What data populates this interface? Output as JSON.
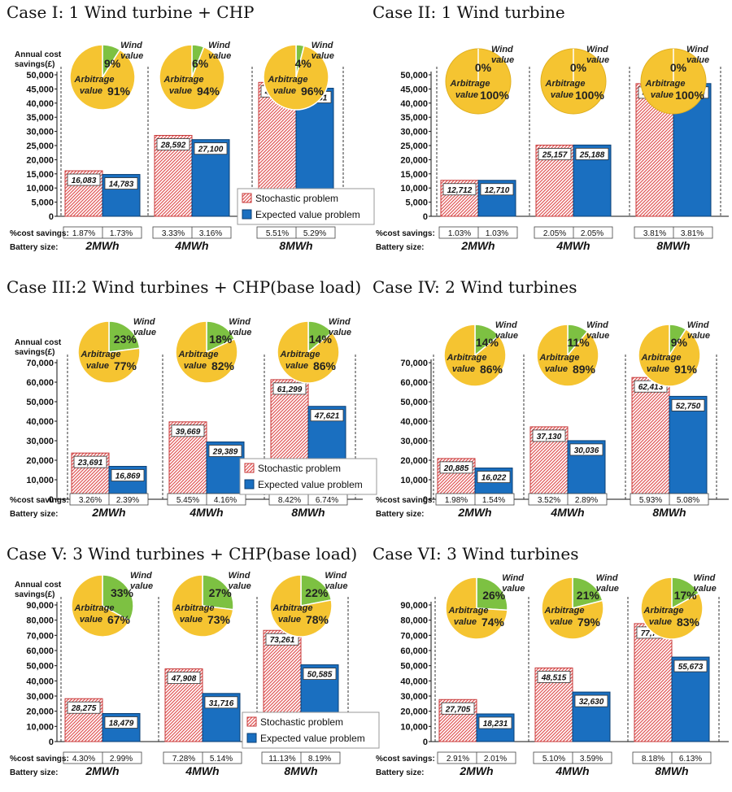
{
  "legend": {
    "stochastic": "Stochastic problem",
    "expected": "Expected value problem"
  },
  "labels": {
    "annual_cost": [
      "Annual cost",
      "savings(£)"
    ],
    "cost_savings": "%cost savings:",
    "battery_size": "Battery size:",
    "arbitrage": "Arbitrage",
    "value": "value",
    "wind": "Wind"
  },
  "colors": {
    "stochastic": "#e05555",
    "expected": "#1a6fc0",
    "pie_arbitrage": "#f5c431",
    "pie_wind": "#7dc142"
  },
  "chart_data": [
    {
      "type": "bar",
      "title": "Case I: 1 Wind turbine + CHP",
      "ylabel": "Annual cost savings(£)",
      "ylim": [
        0,
        50000
      ],
      "yticks": [
        "0",
        "5,000",
        "10,000",
        "15,000",
        "20,000",
        "25,000",
        "30,000",
        "35,000",
        "40,000",
        "45,000",
        "50,000"
      ],
      "categories": [
        "2MWh",
        "4MWh",
        "8MWh"
      ],
      "series": [
        {
          "name": "Stochastic problem",
          "values": [
            16083,
            28592,
            47322
          ],
          "labels": [
            "16,083",
            "28,592",
            "47,322"
          ]
        },
        {
          "name": "Expected value problem",
          "values": [
            14783,
            27100,
            45261
          ],
          "labels": [
            "14,783",
            "27,100",
            "45,261"
          ]
        }
      ],
      "cost_savings_pct": [
        [
          "1.87%",
          "1.73%"
        ],
        [
          "3.33%",
          "3.16%"
        ],
        [
          "5.51%",
          "5.29%"
        ]
      ],
      "pies": [
        {
          "arbitrage": "91%",
          "wind": "9%"
        },
        {
          "arbitrage": "94%",
          "wind": "6%"
        },
        {
          "arbitrage": "96%",
          "wind": "4%"
        }
      ],
      "legend": "inside-right"
    },
    {
      "type": "bar",
      "title": "Case II: 1 Wind turbine",
      "ylim": [
        0,
        50000
      ],
      "yticks": [
        "0",
        "5,000",
        "10,000",
        "15,000",
        "20,000",
        "25,000",
        "30,000",
        "35,000",
        "40,000",
        "45,000",
        "50,000"
      ],
      "categories": [
        "2MWh",
        "4MWh",
        "8MWh"
      ],
      "series": [
        {
          "name": "Stochastic problem",
          "values": [
            12712,
            25157,
            46878
          ],
          "labels": [
            "12,712",
            "25,157",
            "46,878"
          ]
        },
        {
          "name": "Expected value problem",
          "values": [
            12710,
            25188,
            46909
          ],
          "labels": [
            "12,710",
            "25,188",
            "46,909"
          ]
        }
      ],
      "cost_savings_pct": [
        [
          "1.03%",
          "1.03%"
        ],
        [
          "2.05%",
          "2.05%"
        ],
        [
          "3.81%",
          "3.81%"
        ]
      ],
      "pies": [
        {
          "arbitrage": "100%",
          "wind": "0%"
        },
        {
          "arbitrage": "100%",
          "wind": "0%"
        },
        {
          "arbitrage": "100%",
          "wind": "0%"
        }
      ]
    },
    {
      "type": "bar",
      "title": "Case III:2 Wind turbines + CHP(base load)",
      "ylabel": "Annual cost savings(£)",
      "ylim": [
        0,
        70000
      ],
      "yticks": [
        "0",
        "10,000",
        "20,000",
        "30,000",
        "40,000",
        "50,000",
        "60,000",
        "70,000"
      ],
      "categories": [
        "2MWh",
        "4MWh",
        "8MWh"
      ],
      "series": [
        {
          "name": "Stochastic problem",
          "values": [
            23691,
            39669,
            61299
          ],
          "labels": [
            "23,691",
            "39,669",
            "61,299"
          ]
        },
        {
          "name": "Expected value problem",
          "values": [
            16869,
            29389,
            47621
          ],
          "labels": [
            "16,869",
            "29,389",
            "47,621"
          ]
        }
      ],
      "cost_savings_pct": [
        [
          "3.26%",
          "2.39%"
        ],
        [
          "5.45%",
          "4.16%"
        ],
        [
          "8.42%",
          "6.74%"
        ]
      ],
      "pies": [
        {
          "arbitrage": "77%",
          "wind": "23%"
        },
        {
          "arbitrage": "82%",
          "wind": "18%"
        },
        {
          "arbitrage": "86%",
          "wind": "14%"
        }
      ],
      "legend": "inside-right"
    },
    {
      "type": "bar",
      "title": "Case IV: 2 Wind turbines",
      "ylim": [
        0,
        70000
      ],
      "yticks": [
        "0",
        "10,000",
        "20,000",
        "30,000",
        "40,000",
        "50,000",
        "60,000",
        "70,000"
      ],
      "categories": [
        "2MWh",
        "4MWh",
        "8MWh"
      ],
      "series": [
        {
          "name": "Stochastic problem",
          "values": [
            20885,
            37130,
            62413
          ],
          "labels": [
            "20,885",
            "37,130",
            "62,413"
          ]
        },
        {
          "name": "Expected value problem",
          "values": [
            16022,
            30036,
            52750
          ],
          "labels": [
            "16,022",
            "30,036",
            "52,750"
          ]
        }
      ],
      "cost_savings_pct": [
        [
          "1.98%",
          "1.54%"
        ],
        [
          "3.52%",
          "2.89%"
        ],
        [
          "5.93%",
          "5.08%"
        ]
      ],
      "pies": [
        {
          "arbitrage": "86%",
          "wind": "14%"
        },
        {
          "arbitrage": "89%",
          "wind": "11%"
        },
        {
          "arbitrage": "91%",
          "wind": "9%"
        }
      ]
    },
    {
      "type": "bar",
      "title": "Case V: 3 Wind turbines + CHP(base load)",
      "ylabel": "Annual cost savings(£)",
      "ylim": [
        0,
        90000
      ],
      "yticks": [
        "0",
        "10,000",
        "20,000",
        "30,000",
        "40,000",
        "50,000",
        "60,000",
        "70,000",
        "80,000",
        "90,000"
      ],
      "categories": [
        "2MWh",
        "4MWh",
        "8MWh"
      ],
      "series": [
        {
          "name": "Stochastic problem",
          "values": [
            28275,
            47908,
            73261
          ],
          "labels": [
            "28,275",
            "47,908",
            "73,261"
          ]
        },
        {
          "name": "Expected value problem",
          "values": [
            18479,
            31716,
            50585
          ],
          "labels": [
            "18,479",
            "31,716",
            "50,585"
          ]
        }
      ],
      "cost_savings_pct": [
        [
          "4.30%",
          "2.99%"
        ],
        [
          "7.28%",
          "5.14%"
        ],
        [
          "11.13%",
          "8.19%"
        ]
      ],
      "pies": [
        {
          "arbitrage": "67%",
          "wind": "33%"
        },
        {
          "arbitrage": "73%",
          "wind": "27%"
        },
        {
          "arbitrage": "78%",
          "wind": "22%"
        }
      ],
      "legend": "inside-right"
    },
    {
      "type": "bar",
      "title": "Case VI: 3 Wind turbines",
      "ylim": [
        0,
        90000
      ],
      "yticks": [
        "0",
        "10,000",
        "20,000",
        "30,000",
        "40,000",
        "50,000",
        "60,000",
        "70,000",
        "80,000",
        "90,000"
      ],
      "categories": [
        "2MWh",
        "4MWh",
        "8MWh"
      ],
      "series": [
        {
          "name": "Stochastic problem",
          "values": [
            27705,
            48515,
            77719
          ],
          "labels": [
            "27,705",
            "48,515",
            "77,719"
          ]
        },
        {
          "name": "Expected value problem",
          "values": [
            18231,
            32630,
            55673
          ],
          "labels": [
            "18,231",
            "32,630",
            "55,673"
          ]
        }
      ],
      "cost_savings_pct": [
        [
          "2.91%",
          "2.01%"
        ],
        [
          "5.10%",
          "3.59%"
        ],
        [
          "8.18%",
          "6.13%"
        ]
      ],
      "pies": [
        {
          "arbitrage": "74%",
          "wind": "26%"
        },
        {
          "arbitrage": "79%",
          "wind": "21%"
        },
        {
          "arbitrage": "83%",
          "wind": "17%"
        }
      ]
    }
  ]
}
